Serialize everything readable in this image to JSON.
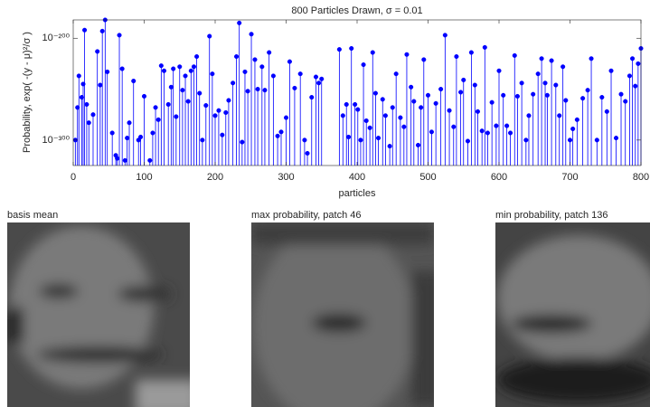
{
  "chart_data": {
    "type": "stem",
    "title": "800 Particles Drawn, σ = 0.01",
    "x_label": "particles",
    "y_label": "Probability, exp( -(y - μ)²/σ )",
    "color": "#0000ff",
    "xlim": [
      0,
      800
    ],
    "xticks": [
      0,
      100,
      200,
      300,
      400,
      500,
      600,
      700,
      800
    ],
    "ylim": [
      -325,
      -182
    ],
    "yticks": [
      {
        "value": -200,
        "label": "10⁻²⁰⁰"
      },
      {
        "value": -300,
        "label": "10⁻³⁰⁰"
      }
    ],
    "x": [
      3,
      6,
      8,
      12,
      14,
      16,
      19,
      22,
      28,
      34,
      38,
      41,
      45,
      48,
      55,
      60,
      62,
      65,
      69,
      73,
      76,
      79,
      85,
      92,
      95,
      100,
      108,
      112,
      116,
      120,
      124,
      128,
      134,
      138,
      141,
      145,
      150,
      154,
      158,
      162,
      166,
      170,
      174,
      178,
      182,
      187,
      192,
      196,
      200,
      205,
      210,
      215,
      219,
      225,
      230,
      234,
      238,
      242,
      246,
      251,
      256,
      260,
      266,
      270,
      276,
      282,
      288,
      293,
      300,
      305,
      312,
      320,
      326,
      330,
      336,
      342,
      346,
      350,
      375,
      380,
      385,
      388,
      392,
      397,
      401,
      405,
      409,
      413,
      418,
      422,
      426,
      430,
      436,
      440,
      446,
      450,
      455,
      461,
      466,
      470,
      476,
      480,
      486,
      490,
      494,
      500,
      505,
      511,
      518,
      524,
      530,
      536,
      540,
      546,
      550,
      556,
      561,
      566,
      570,
      576,
      580,
      584,
      590,
      596,
      600,
      606,
      611,
      616,
      622,
      626,
      632,
      638,
      642,
      648,
      655,
      660,
      665,
      668,
      674,
      680,
      685,
      690,
      694,
      700,
      704,
      710,
      718,
      725,
      730,
      738,
      745,
      752,
      758,
      765,
      772,
      778,
      784,
      788,
      792,
      796,
      800
    ],
    "values": [
      -300,
      -268,
      -237,
      -258,
      -245,
      -192,
      -265,
      -283,
      -275,
      -213,
      -246,
      -193,
      -182,
      -233,
      -293,
      -315,
      -318,
      -197,
      -230,
      -320,
      -298,
      -283,
      -242,
      -300,
      -297,
      -257,
      -320,
      -293,
      -268,
      -280,
      -227,
      -232,
      -265,
      -248,
      -230,
      -277,
      -228,
      -251,
      -237,
      -262,
      -232,
      -228,
      -218,
      -254,
      -300,
      -266,
      -198,
      -235,
      -276,
      -271,
      -295,
      -273,
      -261,
      -244,
      -218,
      -185,
      -302,
      -233,
      -252,
      -196,
      -221,
      -250,
      -228,
      -251,
      -214,
      -237,
      -296,
      -292,
      -278,
      -223,
      -249,
      -235,
      -300,
      -313,
      -258,
      -238,
      -244,
      -240,
      -211,
      -276,
      -265,
      -297,
      -210,
      -265,
      -270,
      -300,
      -226,
      -281,
      -288,
      -214,
      -254,
      -298,
      -260,
      -276,
      -306,
      -268,
      -235,
      -278,
      -287,
      -216,
      -248,
      -262,
      -305,
      -268,
      -221,
      -256,
      -292,
      -264,
      -250,
      -197,
      -271,
      -287,
      -218,
      -253,
      -241,
      -301,
      -214,
      -246,
      -272,
      -291,
      -209,
      -293,
      -263,
      -286,
      -232,
      -256,
      -286,
      -293,
      -217,
      -257,
      -244,
      -300,
      -276,
      -255,
      -235,
      -220,
      -244,
      -256,
      -222,
      -246,
      -276,
      -228,
      -261,
      -300,
      -289,
      -280,
      -259,
      -251,
      -220,
      -300,
      -258,
      -272,
      -232,
      -298,
      -255,
      -262,
      -237,
      -220,
      -247,
      -225,
      -210
    ]
  },
  "images": [
    {
      "title": "basis mean"
    },
    {
      "title": "max probability, patch 46"
    },
    {
      "title": "min probability, patch 136"
    }
  ]
}
